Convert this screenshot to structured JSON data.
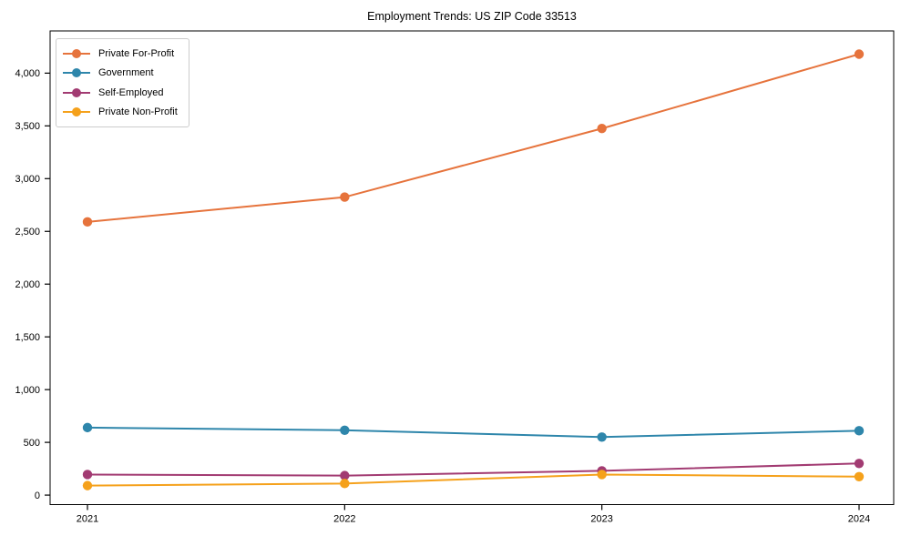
{
  "chart_data": {
    "type": "line",
    "title": "Employment Trends: US ZIP Code 33513",
    "xlabel": "",
    "ylabel": "",
    "x_labels": [
      "2021",
      "2022",
      "2023",
      "2024"
    ],
    "series": [
      {
        "name": "Private For-Profit",
        "color": "#E6733C",
        "values": [
          2590,
          2825,
          3475,
          4180
        ]
      },
      {
        "name": "Government",
        "color": "#2E86AB",
        "values": [
          640,
          615,
          550,
          610
        ]
      },
      {
        "name": "Self-Employed",
        "color": "#A23B72",
        "values": [
          195,
          185,
          230,
          300
        ]
      },
      {
        "name": "Private Non-Profit",
        "color": "#F5A11B",
        "values": [
          90,
          110,
          195,
          175
        ]
      }
    ],
    "yticks": {
      "values": [
        0,
        500,
        1000,
        1500,
        2000,
        2500,
        3000,
        3500,
        4000
      ],
      "labels": [
        "0",
        "500",
        "1,000",
        "1,500",
        "2,000",
        "2,500",
        "3,000",
        "3,500",
        "4,000"
      ]
    },
    "ylim": [
      -90,
      4400
    ],
    "grid": false,
    "legend_position": "upper-left",
    "axis_color": "#000000",
    "text_color": "#000000",
    "background": "#ffffff",
    "marker": "circle",
    "line_width": 2
  }
}
